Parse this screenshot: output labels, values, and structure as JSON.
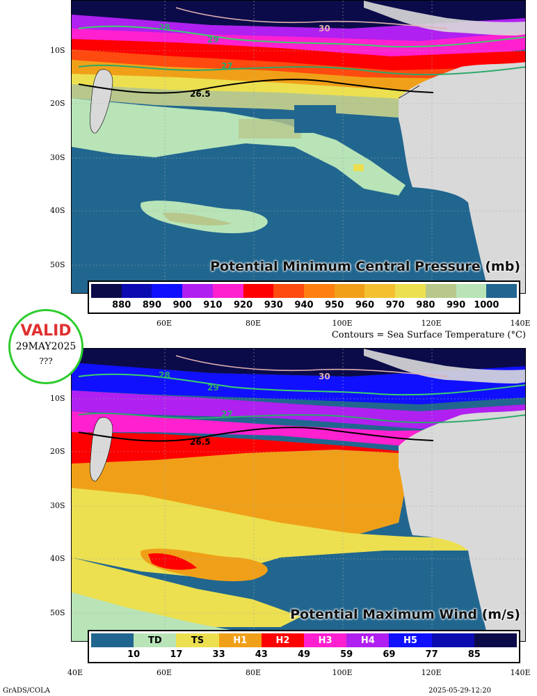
{
  "top_panel": {
    "title": "Potential Minimum Central Pressure (mb)",
    "legend_colors": [
      "#0b0b4a",
      "#0b0bb0",
      "#1010ff",
      "#b020f0",
      "#ff20d0",
      "#ff0000",
      "#ff4a10",
      "#ff8010",
      "#f0a018",
      "#f5c030",
      "#ece050",
      "#b8c88c",
      "#b8e4b8",
      "#21668f"
    ],
    "legend_labels": [
      "880",
      "890",
      "900",
      "910",
      "920",
      "930",
      "940",
      "950",
      "960",
      "970",
      "980",
      "990",
      "1000"
    ]
  },
  "bottom_panel": {
    "title": "Potential Maximum Wind (m/s)",
    "legend_colors": [
      "#21668f",
      "#b8e4b8",
      "#ece050",
      "#f0a018",
      "#ff0000",
      "#ff20d0",
      "#b020f0",
      "#1010ff",
      "#0b0bb0",
      "#0b0b4a"
    ],
    "legend_categories": [
      "",
      "TD",
      "TS",
      "H1",
      "H2",
      "H3",
      "H4",
      "H5",
      "",
      ""
    ],
    "legend_labels": [
      "10",
      "17",
      "33",
      "43",
      "49",
      "59",
      "69",
      "77",
      "85"
    ]
  },
  "lat_labels": [
    "10S",
    "20S",
    "30S",
    "40S",
    "50S"
  ],
  "lon_labels": [
    "40E",
    "60E",
    "80E",
    "100E",
    "120E",
    "140E"
  ],
  "contour_labels": [
    "28",
    "29",
    "30",
    "27",
    "26.5"
  ],
  "contour_note": "Contours = Sea Surface Temperature (°C)",
  "valid_badge": {
    "title": "VALID",
    "date": "29MAY2025",
    "extra": "???"
  },
  "footer": {
    "left": "GrADS/COLA",
    "right": "2025-05-29-12:20"
  }
}
